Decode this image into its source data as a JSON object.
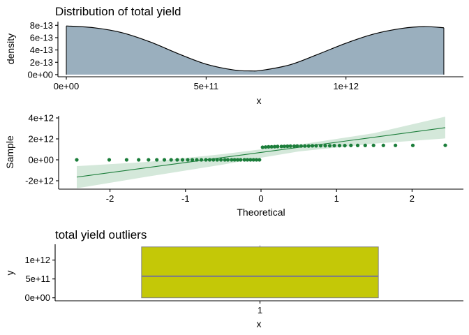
{
  "colors": {
    "density_fill": "#9aafbe",
    "density_line": "#000000",
    "qq_points": "#1b7d3a",
    "qq_line": "#1b7d3a",
    "qq_band": "#cfe6d6",
    "box_fill": "#c4c807",
    "box_stroke": "#808080"
  },
  "chart_data": [
    {
      "type": "area",
      "title": "Distribution of total yield",
      "xlabel": "x",
      "ylabel": "density",
      "xlim": [
        -30000000000.0,
        1420000000000.0
      ],
      "ylim": [
        -3.5e-14,
        8.6e-13
      ],
      "x_ticks": [
        {
          "value": 0,
          "label": "0e+00"
        },
        {
          "value": 500000000000.0,
          "label": "5e+11"
        },
        {
          "value": 1000000000000.0,
          "label": "1e+12"
        }
      ],
      "y_ticks": [
        {
          "value": 0,
          "label": "0e+00"
        },
        {
          "value": 2e-13,
          "label": "2e-13"
        },
        {
          "value": 4e-13,
          "label": "4e-13"
        },
        {
          "value": 6e-13,
          "label": "6e-13"
        },
        {
          "value": 8e-13,
          "label": "8e-13"
        }
      ],
      "x": [
        0,
        100000000000.0,
        200000000000.0,
        300000000000.0,
        400000000000.0,
        500000000000.0,
        600000000000.0,
        660000000000.0,
        700000000000.0,
        800000000000.0,
        900000000000.0,
        1000000000000.0,
        1100000000000.0,
        1200000000000.0,
        1280000000000.0,
        1350000000000.0
      ],
      "y": [
        7.9e-13,
        7.6e-13,
        6.8e-13,
        5.3e-13,
        3.4e-13,
        1.7e-13,
        7.5e-14,
        6e-14,
        7e-14,
        1.6e-13,
        3.3e-13,
        5.1e-13,
        6.6e-13,
        7.5e-13,
        7.8e-13,
        7.6e-13
      ]
    },
    {
      "type": "scatter",
      "title": "",
      "xlabel": "Theoretical",
      "ylabel": "Sample",
      "xlim": [
        -2.68,
        2.68
      ],
      "ylim": [
        -2800000000000.0,
        4200000000000.0
      ],
      "x_ticks": [
        {
          "value": -2,
          "label": "-2"
        },
        {
          "value": -1,
          "label": "-1"
        },
        {
          "value": 0,
          "label": "0"
        },
        {
          "value": 1,
          "label": "1"
        },
        {
          "value": 2,
          "label": "2"
        }
      ],
      "y_ticks": [
        {
          "value": -2000000000000.0,
          "label": "-2e+12"
        },
        {
          "value": 0,
          "label": "0e+00"
        },
        {
          "value": 2000000000000.0,
          "label": "2e+12"
        },
        {
          "value": 4000000000000.0,
          "label": "4e+12"
        }
      ],
      "points_x": [
        -2.44,
        -2.01,
        -1.78,
        -1.62,
        -1.49,
        -1.38,
        -1.28,
        -1.19,
        -1.11,
        -1.04,
        -0.97,
        -0.91,
        -0.85,
        -0.79,
        -0.73,
        -0.68,
        -0.63,
        -0.58,
        -0.53,
        -0.48,
        -0.44,
        -0.39,
        -0.35,
        -0.31,
        -0.27,
        -0.22,
        -0.18,
        -0.14,
        -0.1,
        -0.06,
        -0.02,
        0.02,
        0.06,
        0.1,
        0.14,
        0.18,
        0.22,
        0.27,
        0.31,
        0.35,
        0.39,
        0.44,
        0.48,
        0.53,
        0.58,
        0.63,
        0.68,
        0.73,
        0.79,
        0.85,
        0.91,
        0.97,
        1.04,
        1.11,
        1.19,
        1.28,
        1.38,
        1.49,
        1.62,
        1.78,
        2.01,
        2.44
      ],
      "points_y": [
        0.0,
        0.0,
        0.0,
        0.0,
        0.0,
        0.0,
        0.0,
        0.0,
        0.0,
        0.0,
        0.0,
        0.0,
        0.0,
        0.0,
        0.0,
        0.0,
        0.0,
        0.0,
        0.0,
        0.0,
        0.0,
        0.0,
        0.0,
        0.0,
        0.0,
        0.0,
        0.0,
        0.0,
        0.0,
        0.0,
        0.0,
        1200000000000.0,
        1220000000000.0,
        1240000000000.0,
        1250000000000.0,
        1260000000000.0,
        1270000000000.0,
        1280000000000.0,
        1290000000000.0,
        1300000000000.0,
        1310000000000.0,
        1310000000000.0,
        1320000000000.0,
        1320000000000.0,
        1330000000000.0,
        1330000000000.0,
        1340000000000.0,
        1340000000000.0,
        1350000000000.0,
        1350000000000.0,
        1350000000000.0,
        1360000000000.0,
        1360000000000.0,
        1360000000000.0,
        1370000000000.0,
        1370000000000.0,
        1370000000000.0,
        1380000000000.0,
        1380000000000.0,
        1380000000000.0,
        1380000000000.0,
        1390000000000.0
      ],
      "ref_line": {
        "x": [
          -2.44,
          2.44
        ],
        "y": [
          -1650000000000.0,
          3070000000000.0
        ]
      },
      "band": {
        "x": [
          -2.44,
          -1.5,
          -0.5,
          0,
          0.5,
          1.5,
          2.44
        ],
        "lower": [
          -2720000000000.0,
          -1600000000000.0,
          -450000000000.0,
          200000000000.0,
          800000000000.0,
          1550000000000.0,
          2050000000000.0
        ],
        "upper": [
          -600000000000.0,
          -200000000000.0,
          550000000000.0,
          1000000000000.0,
          1450000000000.0,
          2550000000000.0,
          4120000000000.0
        ]
      }
    },
    {
      "type": "box",
      "title": "total yield outliers",
      "xlabel": "x",
      "ylabel": "y",
      "categories": [
        "1"
      ],
      "ylim": [
        -80000000000.0,
        1420000000000.0
      ],
      "y_ticks": [
        {
          "value": 0,
          "label": "0e+00"
        },
        {
          "value": 500000000000.0,
          "label": "5e+11"
        },
        {
          "value": 1000000000000.0,
          "label": "1e+12"
        }
      ],
      "box": {
        "min": 0,
        "q1": 0,
        "median": 570000000000.0,
        "q3": 1350000000000.0,
        "max": 1390000000000.0
      }
    }
  ]
}
